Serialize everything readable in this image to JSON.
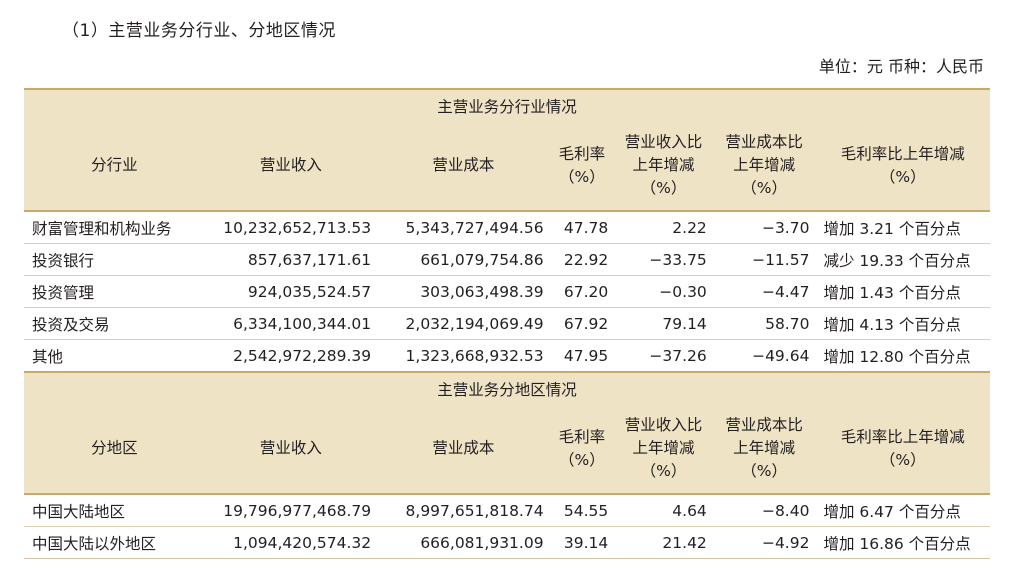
{
  "heading": "（1）主营业务分行业、分地区情况",
  "unit": "单位：元  币种：人民币",
  "industry_section": {
    "title": "主营业务分行业情况",
    "headers": {
      "segment": "分行业",
      "revenue": "营业收入",
      "cost": "营业成本",
      "margin_l1": "毛利率",
      "margin_l2": "（%）",
      "rev_chg_l1": "营业收入比",
      "rev_chg_l2": "上年增减",
      "rev_chg_l3": "（%）",
      "cost_chg_l1": "营业成本比",
      "cost_chg_l2": "上年增减",
      "cost_chg_l3": "（%）",
      "margin_chg_l1": "毛利率比上年增减",
      "margin_chg_l2": "（%）"
    },
    "rows": [
      {
        "name": "财富管理和机构业务",
        "revenue": "10,232,652,713.53",
        "cost": "5,343,727,494.56",
        "margin": "47.78",
        "rev_chg": "2.22",
        "cost_chg": "−3.70",
        "margin_chg": "增加 3.21 个百分点"
      },
      {
        "name": "投资银行",
        "revenue": "857,637,171.61",
        "cost": "661,079,754.86",
        "margin": "22.92",
        "rev_chg": "−33.75",
        "cost_chg": "−11.57",
        "margin_chg": "减少 19.33 个百分点"
      },
      {
        "name": "投资管理",
        "revenue": "924,035,524.57",
        "cost": "303,063,498.39",
        "margin": "67.20",
        "rev_chg": "−0.30",
        "cost_chg": "−4.47",
        "margin_chg": "增加 1.43 个百分点"
      },
      {
        "name": "投资及交易",
        "revenue": "6,334,100,344.01",
        "cost": "2,032,194,069.49",
        "margin": "67.92",
        "rev_chg": "79.14",
        "cost_chg": "58.70",
        "margin_chg": "增加 4.13 个百分点"
      },
      {
        "name": "其他",
        "revenue": "2,542,972,289.39",
        "cost": "1,323,668,932.53",
        "margin": "47.95",
        "rev_chg": "−37.26",
        "cost_chg": "−49.64",
        "margin_chg": "增加 12.80 个百分点"
      }
    ]
  },
  "region_section": {
    "title": "主营业务分地区情况",
    "headers": {
      "segment": "分地区",
      "revenue": "营业收入",
      "cost": "营业成本",
      "margin_l1": "毛利率",
      "margin_l2": "（%）",
      "rev_chg_l1": "营业收入比",
      "rev_chg_l2": "上年增减",
      "rev_chg_l3": "（%）",
      "cost_chg_l1": "营业成本比",
      "cost_chg_l2": "上年增减",
      "cost_chg_l3": "（%）",
      "margin_chg_l1": "毛利率比上年增减",
      "margin_chg_l2": "（%）"
    },
    "rows": [
      {
        "name": "中国大陆地区",
        "revenue": "19,796,977,468.79",
        "cost": "8,997,651,818.74",
        "margin": "54.55",
        "rev_chg": "4.64",
        "cost_chg": "−8.40",
        "margin_chg": "增加 6.47 个百分点"
      },
      {
        "name": "中国大陆以外地区",
        "revenue": "1,094,420,574.32",
        "cost": "666,081,931.09",
        "margin": "39.14",
        "rev_chg": "21.42",
        "cost_chg": "−4.92",
        "margin_chg": "增加 16.86 个百分点"
      }
    ]
  },
  "colors": {
    "header_bg": "#efe3c6",
    "rule": "#c9a96b",
    "text": "#231f20"
  }
}
